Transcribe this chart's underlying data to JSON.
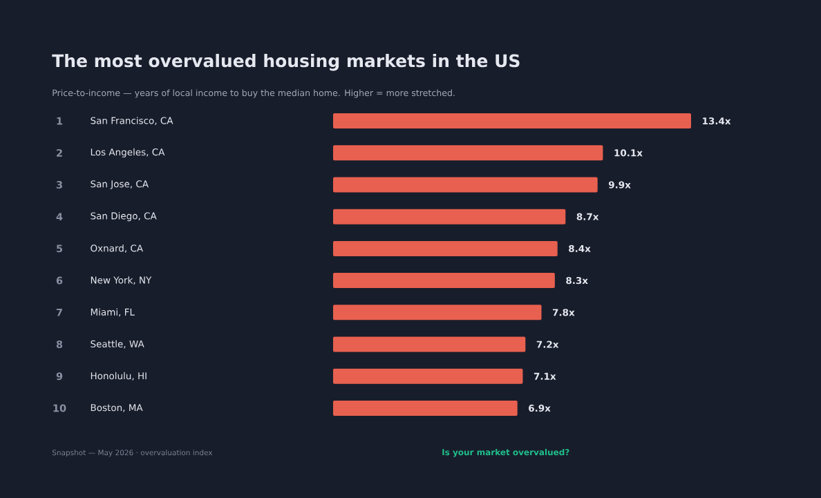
{
  "chart_data": {
    "type": "bar",
    "orientation": "horizontal",
    "title": "The most overvalued housing markets in the US",
    "subtitle": "Price-to-income — years of local income to buy the median home. Higher = more stretched.",
    "categories": [
      "San Francisco, CA",
      "Los Angeles, CA",
      "San Jose, CA",
      "San Diego, CA",
      "Oxnard, CA",
      "New York, NY",
      "Miami, FL",
      "Seattle, WA",
      "Honolulu, HI",
      "Boston, MA"
    ],
    "values": [
      13.4,
      10.1,
      9.9,
      8.7,
      8.4,
      8.3,
      7.8,
      7.2,
      7.1,
      6.9
    ],
    "value_labels": [
      "13.4x",
      "10.1x",
      "9.9x",
      "8.7x",
      "8.4x",
      "8.3x",
      "7.8x",
      "7.2x",
      "7.1x",
      "6.9x"
    ],
    "color": "#e8604f",
    "annotations": [
      "1",
      "2",
      "3",
      "4",
      "5",
      "6",
      "7",
      "8",
      "9",
      "10",
      "Snapshot — May 2026   ·   overvaluation index",
      "Is your market overvalued?"
    ]
  }
}
